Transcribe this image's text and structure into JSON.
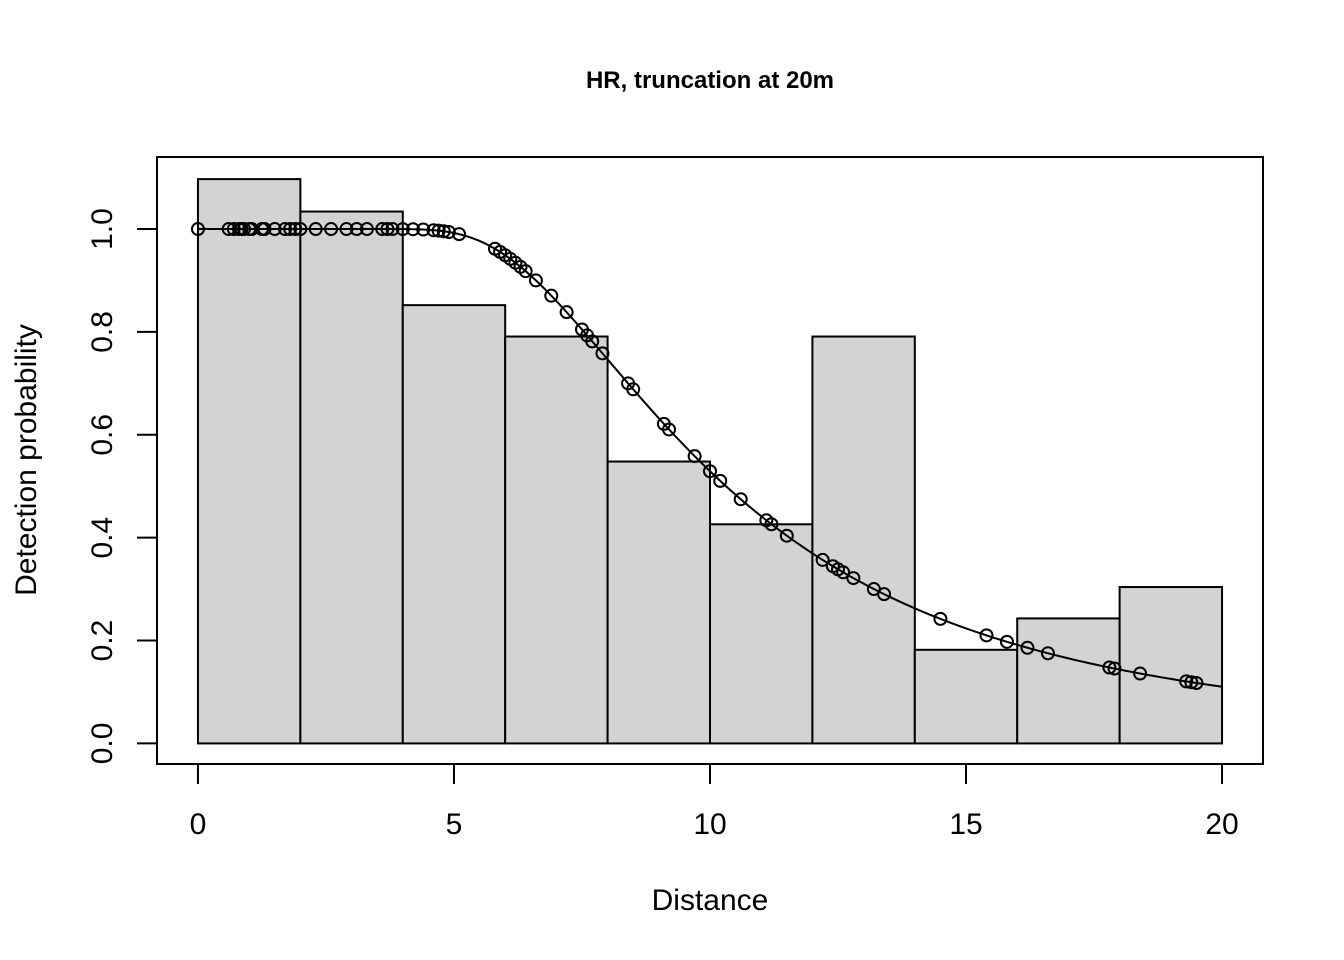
{
  "chart_data": {
    "type": "bar",
    "title": "HR, truncation at 20m",
    "xlabel": "Distance",
    "ylabel": "Detection probability",
    "xlim": [
      -0.8,
      20.8
    ],
    "ylim": [
      -0.04,
      1.14
    ],
    "xticks": [
      "0",
      "5",
      "10",
      "15",
      "20"
    ],
    "yticks": [
      "0.0",
      "0.2",
      "0.4",
      "0.6",
      "0.8",
      "1.0"
    ],
    "bin_width": 2,
    "bins": [
      {
        "start": 0,
        "end": 2,
        "value": 1.097
      },
      {
        "start": 2,
        "end": 4,
        "value": 1.034
      },
      {
        "start": 4,
        "end": 6,
        "value": 0.852
      },
      {
        "start": 6,
        "end": 8,
        "value": 0.791
      },
      {
        "start": 8,
        "end": 10,
        "value": 0.548
      },
      {
        "start": 10,
        "end": 12,
        "value": 0.426
      },
      {
        "start": 12,
        "end": 14,
        "value": 0.791
      },
      {
        "start": 14,
        "end": 16,
        "value": 0.182
      },
      {
        "start": 16,
        "end": 18,
        "value": 0.243
      },
      {
        "start": 18,
        "end": 20,
        "value": 0.304
      }
    ],
    "detection_function": {
      "model": "hazard-rate",
      "sigma": 9.0,
      "b": 2.69
    },
    "observed_distances": [
      0,
      0.6,
      0.7,
      0.8,
      0.85,
      0.9,
      1.0,
      1.05,
      1.25,
      1.3,
      1.5,
      1.7,
      1.8,
      1.9,
      2.0,
      2.3,
      2.6,
      2.9,
      3.1,
      3.3,
      3.6,
      3.7,
      3.8,
      4.0,
      4.2,
      4.4,
      4.6,
      4.7,
      4.8,
      4.9,
      5.1,
      5.8,
      5.9,
      6.0,
      6.1,
      6.2,
      6.3,
      6.4,
      6.6,
      6.9,
      7.2,
      7.5,
      7.6,
      7.7,
      7.9,
      8.4,
      8.5,
      9.1,
      9.2,
      9.7,
      10.0,
      10.2,
      10.6,
      11.1,
      11.2,
      11.5,
      12.2,
      12.4,
      12.5,
      12.6,
      12.8,
      13.2,
      13.4,
      14.5,
      15.4,
      15.8,
      16.2,
      16.6,
      17.8,
      17.9,
      18.4,
      19.3,
      19.4,
      19.5
    ]
  }
}
